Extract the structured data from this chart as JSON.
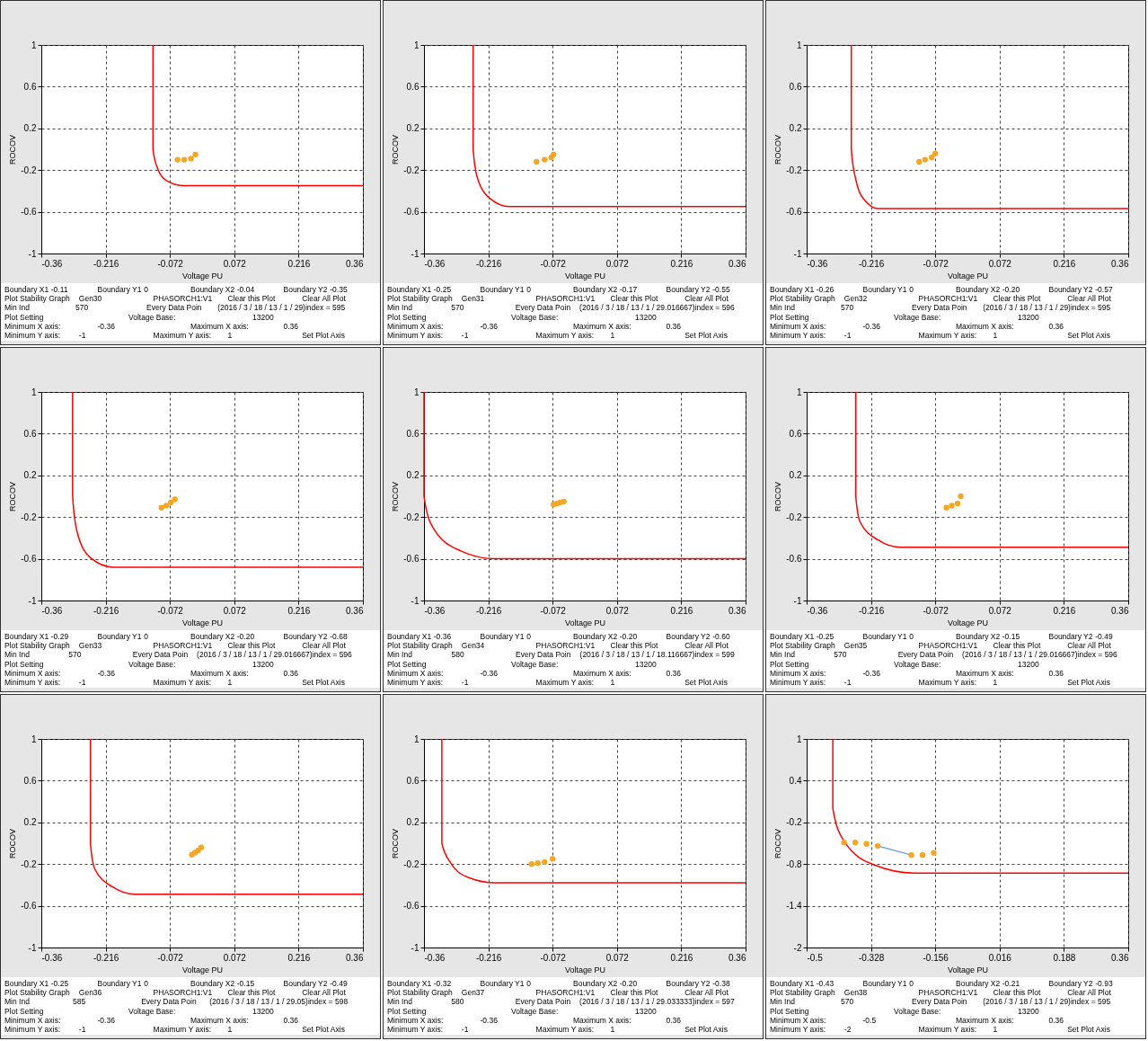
{
  "chart_data": [
    {
      "type": "line",
      "xlabel": "Voltage PU",
      "ylabel": "ROCOV",
      "xlim": [
        -0.36,
        0.36
      ],
      "xticks": [
        -0.36,
        -0.216,
        -0.072,
        0.072,
        0.216,
        0.36
      ],
      "ylim": [
        -1,
        1
      ],
      "yticks": [
        -1,
        -0.6,
        -0.2,
        0.2,
        0.6,
        1
      ],
      "grid": true,
      "series": [
        {
          "type": "line",
          "color": "#ff0000",
          "x": [
            -0.11,
            -0.11,
            -0.1,
            -0.08,
            -0.04,
            0.36
          ],
          "values": [
            1,
            0,
            -0.18,
            -0.3,
            -0.35,
            -0.35
          ]
        },
        {
          "type": "scatter",
          "marker": "circle",
          "color": "#f5a623",
          "x": [
            -0.055,
            -0.04,
            -0.025,
            -0.015
          ],
          "values": [
            -0.1,
            -0.1,
            -0.09,
            -0.05
          ]
        }
      ],
      "annotations": [
        "Boundary X1",
        "-0.11",
        "Boundary Y1",
        "0",
        "Boundary X2",
        "-0.04",
        "Boundary Y2",
        "-0.35",
        "Plot Stability Graph",
        "Gen30",
        "PHASORCH1:V1",
        "Clear this Plot",
        "Clear All Plot",
        "Min Ind",
        "570",
        "Every Data Poin",
        "(2016 / 3 / 18 / 13 / 1 / 29)",
        "index = 595",
        "Plot Setting",
        "Voltage Base:",
        "13200",
        "Minimum X axis:",
        "-0.36",
        "Maximum X axis:",
        "0.36",
        "Minimum Y axis:",
        "-1",
        "Maximum Y axis:",
        "1",
        "Set Plot Axis"
      ]
    },
    {
      "type": "line",
      "xlabel": "Voltage PU",
      "ylabel": "ROCOV",
      "xlim": [
        -0.36,
        0.36
      ],
      "xticks": [
        -0.36,
        -0.216,
        -0.072,
        0.072,
        0.216,
        0.36
      ],
      "ylim": [
        -1,
        1
      ],
      "yticks": [
        -1,
        -0.6,
        -0.2,
        0.2,
        0.6,
        1
      ],
      "grid": true,
      "series": [
        {
          "type": "line",
          "color": "#ff0000",
          "x": [
            -0.25,
            -0.25,
            -0.24,
            -0.21,
            -0.17,
            0.36
          ],
          "values": [
            1,
            0,
            -0.28,
            -0.48,
            -0.55,
            -0.55
          ]
        },
        {
          "type": "scatter",
          "marker": "circle",
          "color": "#f5a623",
          "x": [
            -0.108,
            -0.09,
            -0.075,
            -0.07
          ],
          "values": [
            -0.12,
            -0.1,
            -0.08,
            -0.05
          ]
        }
      ],
      "annotations": [
        "Boundary X1",
        "-0.25",
        "Boundary Y1",
        "0",
        "Boundary X2",
        "-0.17",
        "Boundary Y2",
        "-0.55",
        "Plot Stability Graph",
        "Gen31",
        "PHASORCH1:V1",
        "Clear this Plot",
        "Clear All Plot",
        "Min Ind",
        "570",
        "Every Data Poin",
        "(2016 / 3 / 18 / 13 / 1 / 29.016667)",
        "index = 596",
        "Plot Setting",
        "Voltage Base:",
        "13200",
        "Minimum X axis:",
        "-0.36",
        "Maximum X axis:",
        "0.36",
        "Minimum Y axis:",
        "-1",
        "Maximum Y axis:",
        "1",
        "Set Plot Axis"
      ]
    },
    {
      "type": "line",
      "xlabel": "Voltage PU",
      "ylabel": "ROCOV",
      "xlim": [
        -0.36,
        0.36
      ],
      "xticks": [
        -0.36,
        -0.216,
        -0.072,
        0.072,
        0.216,
        0.36
      ],
      "ylim": [
        -1,
        1
      ],
      "yticks": [
        -1,
        -0.6,
        -0.2,
        0.2,
        0.6,
        1
      ],
      "grid": true,
      "series": [
        {
          "type": "line",
          "color": "#ff0000",
          "x": [
            -0.26,
            -0.26,
            -0.25,
            -0.23,
            -0.2,
            0.36
          ],
          "values": [
            1,
            0,
            -0.29,
            -0.49,
            -0.57,
            -0.57
          ]
        },
        {
          "type": "scatter",
          "marker": "circle",
          "color": "#f5a623",
          "x": [
            -0.108,
            -0.095,
            -0.08,
            -0.072
          ],
          "values": [
            -0.12,
            -0.1,
            -0.08,
            -0.04
          ]
        }
      ],
      "annotations": [
        "Boundary X1",
        "-0.26",
        "Boundary Y1",
        "0",
        "Boundary X2",
        "-0.20",
        "Boundary Y2",
        "-0.57",
        "Plot Stability Graph",
        "Gen32",
        "PHASORCH1:V1",
        "Clear this Plot",
        "Clear All Plot",
        "Min Ind",
        "570",
        "Every Data Poin",
        "(2016 / 3 / 18 / 13 / 1 / 29)",
        "index = 595",
        "Plot Setting",
        "Voltage Base:",
        "13200",
        "Minimum X axis:",
        "-0.36",
        "Maximum X axis:",
        "0.36",
        "Minimum Y axis:",
        "-1",
        "Maximum Y axis:",
        "1",
        "Set Plot Axis"
      ]
    },
    {
      "type": "line",
      "xlabel": "Voltage PU",
      "ylabel": "ROCOV",
      "xlim": [
        -0.36,
        0.36
      ],
      "xticks": [
        -0.36,
        -0.216,
        -0.072,
        0.072,
        0.216,
        0.36
      ],
      "ylim": [
        -1,
        1
      ],
      "yticks": [
        -1,
        -0.6,
        -0.2,
        0.2,
        0.6,
        1
      ],
      "grid": true,
      "series": [
        {
          "type": "line",
          "color": "#ff0000",
          "x": [
            -0.29,
            -0.29,
            -0.28,
            -0.25,
            -0.2,
            0.36
          ],
          "values": [
            1,
            0,
            -0.34,
            -0.59,
            -0.68,
            -0.68
          ]
        },
        {
          "type": "scatter",
          "marker": "circle",
          "color": "#f5a623",
          "x": [
            -0.091,
            -0.08,
            -0.07,
            -0.061
          ],
          "values": [
            -0.11,
            -0.09,
            -0.06,
            -0.03
          ]
        }
      ],
      "annotations": [
        "Boundary X1",
        "-0.29",
        "Boundary Y1",
        "0",
        "Boundary X2",
        "-0.20",
        "Boundary Y2",
        "-0.68",
        "Plot Stability Graph",
        "Gen33",
        "PHASORCH1:V1",
        "Clear this Plot",
        "Clear All Plot",
        "Min Ind",
        "570",
        "Every Data Poin",
        "(2016 / 3 / 18 / 13 / 1 / 29.016667)",
        "index = 596",
        "Plot Setting",
        "Voltage Base:",
        "13200",
        "Minimum X axis:",
        "-0.36",
        "Maximum X axis:",
        "0.36",
        "Minimum Y axis:",
        "-1",
        "Maximum Y axis:",
        "1",
        "Set Plot Axis"
      ]
    },
    {
      "type": "line",
      "xlabel": "Voltage PU",
      "ylabel": "ROCOV",
      "xlim": [
        -0.36,
        0.36
      ],
      "xticks": [
        -0.36,
        -0.216,
        -0.072,
        0.072,
        0.216,
        0.36
      ],
      "ylim": [
        -1,
        1
      ],
      "yticks": [
        -1,
        -0.6,
        -0.2,
        0.2,
        0.6,
        1
      ],
      "grid": true,
      "series": [
        {
          "type": "line",
          "color": "#ff0000",
          "x": [
            -0.36,
            -0.36,
            -0.34,
            -0.28,
            -0.2,
            0.36
          ],
          "values": [
            1,
            0,
            -0.3,
            -0.52,
            -0.6,
            -0.6
          ]
        },
        {
          "type": "scatter",
          "marker": "circle",
          "color": "#f5a623",
          "x": [
            -0.07,
            -0.062,
            -0.055,
            -0.047
          ],
          "values": [
            -0.08,
            -0.07,
            -0.06,
            -0.05
          ]
        }
      ],
      "annotations": [
        "Boundary X1",
        "-0.36",
        "Boundary Y1",
        "0",
        "Boundary X2",
        "-0.20",
        "Boundary Y2",
        "-0.60",
        "Plot Stability Graph",
        "Gen34",
        "PHASORCH1:V1",
        "Clear this Plot",
        "Clear All Plot",
        "Min Ind",
        "580",
        "Every Data Poin",
        "(2016 / 3 / 18 / 13 / 1 / 18.116667)",
        "index = 599",
        "Plot Setting",
        "Voltage Base:",
        "13200",
        "Minimum X axis:",
        "-0.36",
        "Maximum X axis:",
        "0.36",
        "Minimum Y axis:",
        "-1",
        "Maximum Y axis:",
        "1",
        "Set Plot Axis"
      ]
    },
    {
      "type": "line",
      "xlabel": "Voltage PU",
      "ylabel": "ROCOV",
      "xlim": [
        -0.36,
        0.36
      ],
      "xticks": [
        -0.36,
        -0.216,
        -0.072,
        0.072,
        0.216,
        0.36
      ],
      "ylim": [
        -1,
        1
      ],
      "yticks": [
        -1,
        -0.6,
        -0.2,
        0.2,
        0.6,
        1
      ],
      "grid": true,
      "series": [
        {
          "type": "line",
          "color": "#ff0000",
          "x": [
            -0.25,
            -0.25,
            -0.24,
            -0.2,
            -0.15,
            0.36
          ],
          "values": [
            1,
            0,
            -0.25,
            -0.42,
            -0.49,
            -0.49
          ]
        },
        {
          "type": "scatter",
          "marker": "circle",
          "color": "#f5a623",
          "x": [
            -0.047,
            -0.035,
            -0.022,
            -0.015
          ],
          "values": [
            -0.11,
            -0.09,
            -0.07,
            0.0
          ]
        }
      ],
      "annotations": [
        "Boundary X1",
        "-0.25",
        "Boundary Y1",
        "0",
        "Boundary X2",
        "-0.15",
        "Boundary Y2",
        "-0.49",
        "Plot Stability Graph",
        "Gen35",
        "PHASORCH1:V1",
        "Clear this Plot",
        "Clear All Plot",
        "Min Ind",
        "570",
        "Every Data Poin",
        "(2016 / 3 / 18 / 13 / 1 / 29.016667)",
        "index = 596",
        "Plot Setting",
        "Voltage Base:",
        "13200",
        "Minimum X axis:",
        "-0.36",
        "Maximum X axis:",
        "0.36",
        "Minimum Y axis:",
        "-1",
        "Maximum Y axis:",
        "1",
        "Set Plot Axis"
      ]
    },
    {
      "type": "line",
      "xlabel": "Voltage PU",
      "ylabel": "ROCOV",
      "xlim": [
        -0.36,
        0.36
      ],
      "xticks": [
        -0.36,
        -0.216,
        -0.072,
        0.072,
        0.216,
        0.36
      ],
      "ylim": [
        -1,
        1
      ],
      "yticks": [
        -1,
        -0.6,
        -0.2,
        0.2,
        0.6,
        1
      ],
      "grid": true,
      "series": [
        {
          "type": "line",
          "color": "#ff0000",
          "x": [
            -0.25,
            -0.25,
            -0.24,
            -0.2,
            -0.15,
            0.36
          ],
          "values": [
            1,
            0,
            -0.25,
            -0.42,
            -0.49,
            -0.49
          ]
        },
        {
          "type": "scatter",
          "marker": "circle",
          "color": "#f5a623",
          "x": [
            -0.023,
            -0.016,
            -0.009,
            -0.002
          ],
          "values": [
            -0.11,
            -0.09,
            -0.07,
            -0.04
          ]
        }
      ],
      "annotations": [
        "Boundary X1",
        "-0.25",
        "Boundary Y1",
        "0",
        "Boundary X2",
        "-0.15",
        "Boundary Y2",
        "-0.49",
        "Plot Stability Graph",
        "Gen36",
        "PHASORCH1:V1",
        "Clear this Plot",
        "Clear All Plot",
        "Min Ind",
        "585",
        "Every Data Poin",
        "(2016 / 3 / 18 / 13 / 1 / 29.05)",
        "index = 598",
        "Plot Setting",
        "Voltage Base:",
        "13200",
        "Minimum X axis:",
        "-0.36",
        "Maximum X axis:",
        "0.36",
        "Minimum Y axis:",
        "-1",
        "Maximum Y axis:",
        "1",
        "Set Plot Axis"
      ]
    },
    {
      "type": "line",
      "xlabel": "Voltage PU",
      "ylabel": "ROCOV",
      "xlim": [
        -0.36,
        0.36
      ],
      "xticks": [
        -0.36,
        -0.216,
        -0.072,
        0.072,
        0.216,
        0.36
      ],
      "ylim": [
        -1,
        1
      ],
      "yticks": [
        -1,
        -0.6,
        -0.2,
        0.2,
        0.6,
        1
      ],
      "grid": true,
      "series": [
        {
          "type": "line",
          "color": "#ff0000",
          "x": [
            -0.32,
            -0.32,
            -0.3,
            -0.26,
            -0.2,
            0.36
          ],
          "values": [
            1,
            0,
            -0.19,
            -0.33,
            -0.38,
            -0.38
          ]
        },
        {
          "type": "scatter",
          "marker": "circle",
          "color": "#f5a623",
          "x": [
            -0.119,
            -0.105,
            -0.09,
            -0.072
          ],
          "values": [
            -0.2,
            -0.19,
            -0.18,
            -0.15
          ]
        }
      ],
      "annotations": [
        "Boundary X1",
        "-0.32",
        "Boundary Y1",
        "0",
        "Boundary X2",
        "-0.20",
        "Boundary Y2",
        "-0.38",
        "Plot Stability Graph",
        "Gen37",
        "PHASORCH1:V1",
        "Clear this Plot",
        "Clear All Plot",
        "Min Ind",
        "580",
        "Every Data Poin",
        "(2016 / 3 / 18 / 13 / 1 / 29.033333)",
        "index = 597",
        "Plot Setting",
        "Voltage Base:",
        "13200",
        "Minimum X axis:",
        "-0.36",
        "Maximum X axis:",
        "0.36",
        "Minimum Y axis:",
        "-1",
        "Maximum Y axis:",
        "1",
        "Set Plot Axis"
      ]
    },
    {
      "type": "line",
      "xlabel": "Voltage PU",
      "ylabel": "ROCOV",
      "xlim": [
        -0.5,
        0.36
      ],
      "xticks": [
        -0.5,
        -0.328,
        -0.156,
        0.016,
        0.188,
        0.36
      ],
      "ylim": [
        -2,
        1
      ],
      "yticks": [
        -2,
        -1.4,
        -0.8,
        -0.2,
        0.4,
        1
      ],
      "grid": true,
      "series": [
        {
          "type": "line",
          "color": "#ff0000",
          "x": [
            -0.43,
            -0.43,
            -0.4,
            -0.32,
            -0.21,
            0.36
          ],
          "values": [
            1,
            0,
            -0.47,
            -0.81,
            -0.93,
            -0.93
          ]
        },
        {
          "type": "line",
          "color": "#6fa8dc",
          "x": [
            -0.31,
            -0.22
          ],
          "values": [
            -0.54,
            -0.67
          ]
        },
        {
          "type": "scatter",
          "marker": "circle",
          "color": "#f5a623",
          "x": [
            -0.4,
            -0.37,
            -0.34,
            -0.31,
            -0.22,
            -0.19,
            -0.16
          ],
          "values": [
            -0.49,
            -0.49,
            -0.51,
            -0.54,
            -0.67,
            -0.67,
            -0.64
          ]
        }
      ],
      "annotations": [
        "Boundary X1",
        "-0.43",
        "Boundary Y1",
        "0",
        "Boundary X2",
        "-0.21",
        "Boundary Y2",
        "-0.93",
        "Plot Stability Graph",
        "Gen38",
        "PHASORCH1:V1",
        "Clear this Plot",
        "Clear All Plot",
        "Min Ind",
        "570",
        "Every Data Poin",
        "(2016 / 3 / 18 / 13 / 1 / 29)",
        "index = 595",
        "Plot Setting",
        "Voltage Base:",
        "13200",
        "Minimum X axis:",
        "-0.5",
        "Maximum X axis:",
        "0.36",
        "Minimum Y axis:",
        "-2",
        "Maximum Y axis:",
        "1",
        "Set Plot Axis"
      ]
    }
  ]
}
